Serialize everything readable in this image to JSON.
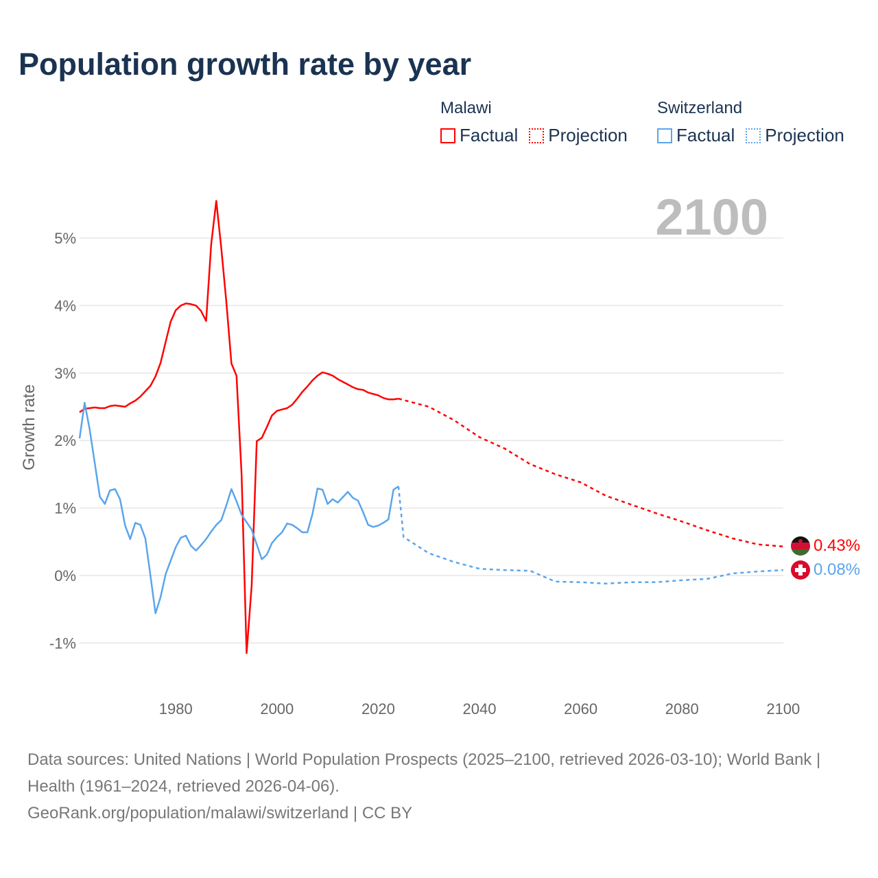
{
  "title": "Population growth rate by year",
  "legend": [
    {
      "country": "Malawi",
      "factual_label": "Factual",
      "projection_label": "Projection",
      "color": "#ff0000"
    },
    {
      "country": "Switzerland",
      "factual_label": "Factual",
      "projection_label": "Projection",
      "color": "#5aa5ec"
    }
  ],
  "current_year_label": "2100",
  "end_labels": {
    "malawi": "0.43%",
    "switzerland": "0.08%"
  },
  "footer": {
    "sources": "Data sources: United Nations | World Population Prospects (2025–2100, retrieved 2026-03-10); World Bank | Health (1961–2024, retrieved 2026-04-06).",
    "link": "GeoRank.org/population/malawi/switzerland",
    "license": " | CC BY"
  },
  "chart_data": {
    "type": "line",
    "title": "Population growth rate by year",
    "xlabel": "",
    "ylabel": "Growth rate",
    "xlim": [
      1961,
      2100
    ],
    "ylim": [
      -1.5,
      5.6
    ],
    "x_ticks": [
      1980,
      2000,
      2020,
      2040,
      2060,
      2080,
      2100
    ],
    "x_tick_labels": [
      "1980",
      "2000",
      "2020",
      "2040",
      "2060",
      "2080",
      "2100"
    ],
    "y_ticks": [
      -1,
      0,
      1,
      2,
      3,
      4,
      5
    ],
    "y_tick_labels": [
      "-1%",
      "0%",
      "1%",
      "2%",
      "3%",
      "4%",
      "5%"
    ],
    "grid": true,
    "legend_placement": "top-right",
    "series": [
      {
        "name": "Malawi Factual",
        "color": "#ff0000",
        "style": "solid",
        "x_start": 1961,
        "values": [
          2.42,
          2.47,
          2.48,
          2.49,
          2.48,
          2.48,
          2.51,
          2.52,
          2.51,
          2.5,
          2.55,
          2.59,
          2.65,
          2.73,
          2.81,
          2.95,
          3.15,
          3.46,
          3.76,
          3.93,
          4.0,
          4.03,
          4.02,
          4.0,
          3.92,
          3.77,
          4.91,
          5.55,
          4.85,
          4.05,
          3.14,
          2.96,
          1.5,
          -1.15,
          -0.15,
          1.99,
          2.04,
          2.2,
          2.37,
          2.44,
          2.46,
          2.48,
          2.53,
          2.62,
          2.72,
          2.8,
          2.89,
          2.96,
          3.01,
          2.99,
          2.96,
          2.91,
          2.87,
          2.83,
          2.79,
          2.76,
          2.75,
          2.71,
          2.69,
          2.67,
          2.63,
          2.61,
          2.61,
          2.62
        ]
      },
      {
        "name": "Malawi Projection",
        "color": "#ff0000",
        "style": "dotted",
        "x": [
          2024,
          2030,
          2035,
          2040,
          2045,
          2050,
          2055,
          2060,
          2065,
          2070,
          2075,
          2080,
          2085,
          2090,
          2095,
          2100
        ],
        "values": [
          2.62,
          2.5,
          2.3,
          2.05,
          1.88,
          1.65,
          1.5,
          1.38,
          1.18,
          1.05,
          0.92,
          0.8,
          0.67,
          0.55,
          0.46,
          0.43
        ]
      },
      {
        "name": "Switzerland Factual",
        "color": "#5aa5ec",
        "style": "solid",
        "x_start": 1961,
        "values": [
          2.03,
          2.56,
          2.16,
          1.67,
          1.17,
          1.06,
          1.26,
          1.28,
          1.13,
          0.74,
          0.54,
          0.78,
          0.75,
          0.55,
          0.0,
          -0.56,
          -0.32,
          0.02,
          0.22,
          0.42,
          0.56,
          0.59,
          0.44,
          0.37,
          0.45,
          0.54,
          0.65,
          0.75,
          0.82,
          1.04,
          1.28,
          1.1,
          0.9,
          0.79,
          0.68,
          0.46,
          0.24,
          0.31,
          0.48,
          0.57,
          0.64,
          0.77,
          0.75,
          0.7,
          0.64,
          0.64,
          0.91,
          1.29,
          1.27,
          1.06,
          1.13,
          1.08,
          1.16,
          1.24,
          1.15,
          1.11,
          0.94,
          0.75,
          0.72,
          0.74,
          0.78,
          0.83,
          1.27,
          1.32
        ]
      },
      {
        "name": "Switzerland Projection",
        "color": "#5aa5ec",
        "style": "dotted",
        "x": [
          2024,
          2025,
          2030,
          2035,
          2040,
          2045,
          2050,
          2055,
          2060,
          2065,
          2070,
          2075,
          2080,
          2085,
          2090,
          2095,
          2100
        ],
        "values": [
          1.32,
          0.57,
          0.33,
          0.2,
          0.1,
          0.08,
          0.07,
          -0.09,
          -0.1,
          -0.12,
          -0.1,
          -0.1,
          -0.07,
          -0.05,
          0.03,
          0.06,
          0.08
        ]
      }
    ]
  }
}
